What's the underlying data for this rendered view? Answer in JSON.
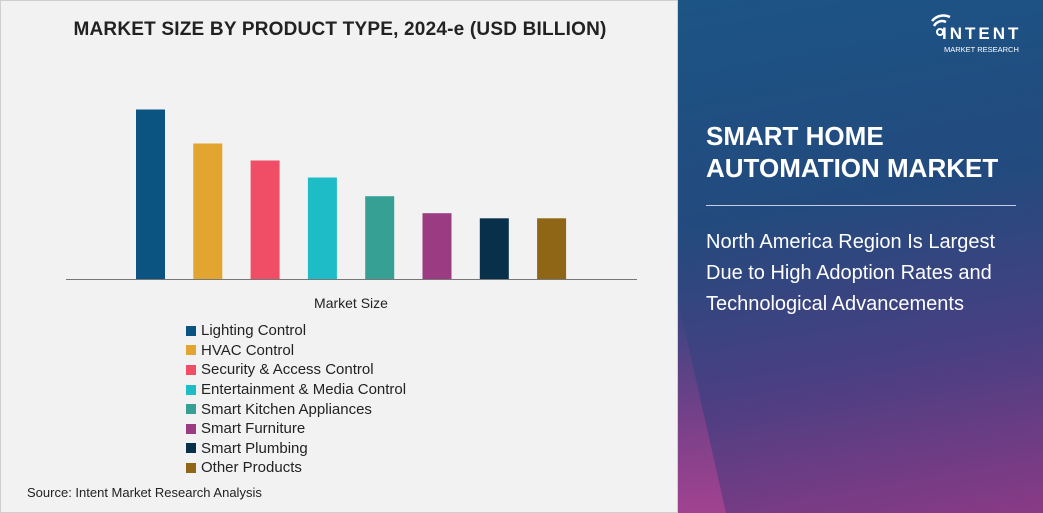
{
  "chart_data": {
    "type": "bar",
    "title": "MARKET SIZE BY PRODUCT TYPE, 2024-e (USD BILLION)",
    "xlabel": "Market Size",
    "ylabel": "",
    "categories": [
      "Lighting Control",
      "HVAC Control",
      "Security & Access Control",
      "Entertainment & Media Control",
      "Smart Kitchen Appliances",
      "Smart Furniture",
      "Smart Plumbing",
      "Other Products"
    ],
    "values": [
      100,
      80,
      70,
      60,
      49,
      39,
      36,
      36
    ],
    "colors": [
      "#0b5482",
      "#e2a52f",
      "#ef4e66",
      "#1dbcc6",
      "#37a095",
      "#9b3b82",
      "#08304b",
      "#8e6615"
    ],
    "ylim": [
      0,
      100
    ],
    "grid": false,
    "legend": "bottom"
  },
  "source": "Source: Intent Market Research Analysis",
  "logo": {
    "brand": "INTENT",
    "sub": "MARKET RESEARCH"
  },
  "panel": {
    "heading": "SMART HOME AUTOMATION MARKET",
    "description": "North America Region Is Largest Due to High Adoption Rates and Technological Advancements"
  }
}
